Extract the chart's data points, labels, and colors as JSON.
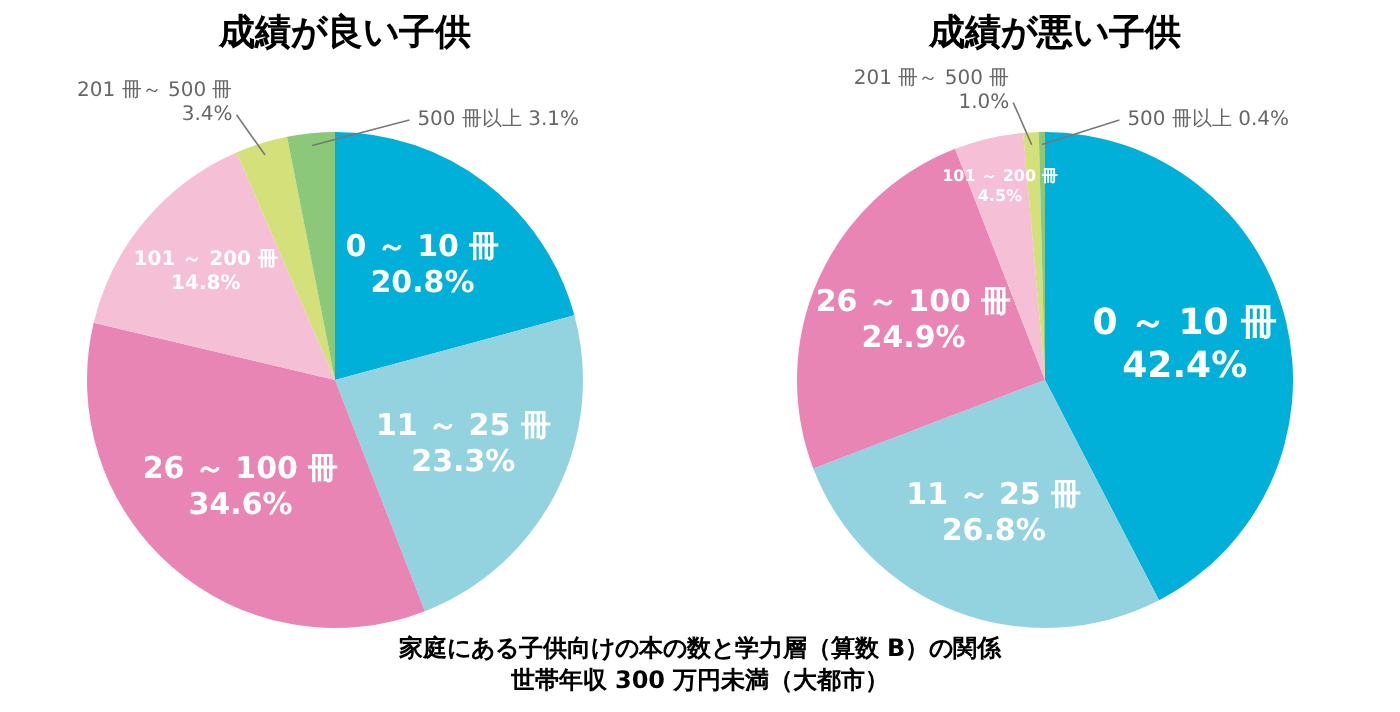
{
  "chart_data": [
    {
      "type": "pie",
      "title": "成績が良い子供",
      "categories": [
        "0 ～ 10 冊",
        "11 ～ 25 冊",
        "26 ～ 100 冊",
        "101 ～ 200 冊",
        "201 冊～ 500 冊",
        "500 冊以上"
      ],
      "values": [
        20.8,
        23.3,
        34.6,
        14.8,
        3.4,
        3.1
      ],
      "colors": [
        "#00b0d8",
        "#93d3df",
        "#e985b5",
        "#f5bfd6",
        "#d4e07a",
        "#8cc87a"
      ],
      "value_labels": [
        "20.8%",
        "23.3%",
        "34.6%",
        "14.8%",
        "3.4%",
        "3.1%"
      ],
      "legend": false,
      "annotations": [
        "家庭にある子供向けの本の数と学力層（算数 B）の関係",
        "世帯年収 300 万円未満（大都市）"
      ]
    },
    {
      "type": "pie",
      "title": "成績が悪い子供",
      "categories": [
        "0 ～ 10 冊",
        "11 ～ 25 冊",
        "26 ～ 100 冊",
        "101 ～ 200 冊",
        "201 冊～ 500 冊",
        "500 冊以上"
      ],
      "values": [
        42.4,
        26.8,
        24.9,
        4.5,
        1.0,
        0.4
      ],
      "colors": [
        "#00b0d8",
        "#93d3df",
        "#e985b5",
        "#f5bfd6",
        "#d4e07a",
        "#8cc87a"
      ],
      "value_labels": [
        "42.4%",
        "26.8%",
        "24.9%",
        "4.5%",
        "1.0%",
        "0.4%"
      ],
      "legend": false
    }
  ]
}
